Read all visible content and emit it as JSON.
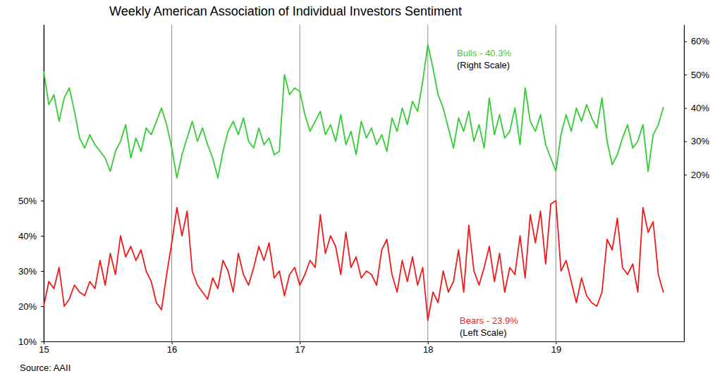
{
  "chart_data": {
    "type": "line",
    "title": "Weekly American Association of Individual Investors Sentiment",
    "source": "Source: AAII",
    "x": [
      15.0,
      15.04,
      15.08,
      15.12,
      15.16,
      15.2,
      15.24,
      15.28,
      15.32,
      15.36,
      15.4,
      15.44,
      15.48,
      15.52,
      15.56,
      15.6,
      15.64,
      15.68,
      15.72,
      15.76,
      15.8,
      15.84,
      15.88,
      15.92,
      15.96,
      16.0,
      16.04,
      16.08,
      16.12,
      16.16,
      16.2,
      16.24,
      16.28,
      16.32,
      16.36,
      16.4,
      16.44,
      16.48,
      16.52,
      16.56,
      16.6,
      16.64,
      16.68,
      16.72,
      16.76,
      16.8,
      16.84,
      16.88,
      16.92,
      16.96,
      17.0,
      17.04,
      17.08,
      17.12,
      17.16,
      17.2,
      17.24,
      17.28,
      17.32,
      17.36,
      17.4,
      17.44,
      17.48,
      17.52,
      17.56,
      17.6,
      17.64,
      17.68,
      17.72,
      17.76,
      17.8,
      17.84,
      17.88,
      17.92,
      17.96,
      18.0,
      18.04,
      18.08,
      18.12,
      18.16,
      18.2,
      18.24,
      18.28,
      18.32,
      18.36,
      18.4,
      18.44,
      18.48,
      18.52,
      18.56,
      18.6,
      18.64,
      18.68,
      18.72,
      18.76,
      18.8,
      18.84,
      18.88,
      18.92,
      18.96,
      19.0,
      19.04,
      19.08,
      19.12,
      19.16,
      19.2,
      19.24,
      19.28,
      19.32,
      19.36,
      19.4,
      19.44,
      19.48,
      19.52,
      19.56,
      19.6,
      19.64,
      19.68,
      19.72,
      19.76,
      19.8,
      19.84
    ],
    "xlim": [
      15,
      20
    ],
    "xticks": [
      15,
      16,
      17,
      18,
      19
    ],
    "ylim": [
      10,
      100
    ],
    "yticks": [
      {
        "value": 10,
        "label": "10%"
      },
      {
        "value": 20,
        "label": "20%"
      },
      {
        "value": 30,
        "label": "30%"
      },
      {
        "value": 40,
        "label": "40%"
      },
      {
        "value": 50,
        "label": "50%"
      }
    ],
    "y2lim": [
      -30,
      65
    ],
    "y2ticks": [
      {
        "value": 20,
        "label": "20%"
      },
      {
        "value": 30,
        "label": "30%"
      },
      {
        "value": 40,
        "label": "40%"
      },
      {
        "value": 50,
        "label": "50%"
      },
      {
        "value": 60,
        "label": "60%"
      }
    ],
    "grid": "x",
    "series": [
      {
        "name": "Bulls",
        "color": "#33cc33",
        "axis": "y2",
        "annotation": "- 40.3%",
        "scale_label": "(Right Scale)",
        "values": [
          51,
          41,
          44,
          36,
          43,
          46,
          39,
          31,
          28,
          32,
          29,
          27,
          25,
          21,
          27,
          30,
          35,
          25,
          31,
          27,
          34,
          32,
          36,
          40,
          35,
          28,
          19,
          26,
          31,
          36,
          30,
          34,
          29,
          25,
          19,
          27,
          33,
          36,
          32,
          37,
          30,
          28,
          34,
          29,
          31,
          26,
          27,
          50,
          44,
          46,
          45,
          38,
          33,
          36,
          39,
          32,
          35,
          30,
          38,
          29,
          33,
          26,
          36,
          31,
          34,
          29,
          32,
          27,
          37,
          33,
          40,
          35,
          42,
          39,
          48,
          59,
          52,
          44,
          40,
          34,
          28,
          37,
          33,
          39,
          30,
          35,
          28,
          43,
          32,
          38,
          31,
          33,
          40,
          29,
          46,
          36,
          33,
          38,
          29,
          25,
          21,
          32,
          38,
          33,
          40,
          36,
          41,
          37,
          34,
          43,
          30,
          23,
          26,
          31,
          35,
          28,
          30,
          35,
          21,
          32,
          35,
          40.3
        ]
      },
      {
        "name": "Bears",
        "color": "#ee1c1c",
        "axis": "y",
        "annotation": "- 23.9%",
        "scale_label": "(Left Scale)",
        "values": [
          20,
          27,
          25,
          31,
          20,
          22,
          26,
          24,
          23,
          27,
          25,
          33,
          26,
          35,
          29,
          40,
          34,
          37,
          33,
          36,
          30,
          27,
          21,
          19,
          29,
          38,
          48,
          40,
          47,
          30,
          26,
          24,
          22,
          28,
          25,
          33,
          30,
          24,
          35,
          29,
          26,
          31,
          37,
          33,
          38,
          28,
          30,
          23,
          29,
          31,
          26,
          29,
          33,
          31,
          46,
          35,
          40,
          37,
          29,
          41,
          31,
          34,
          28,
          30,
          29,
          26,
          36,
          39,
          29,
          24,
          33,
          27,
          34,
          26,
          31,
          16,
          24,
          21,
          30,
          24,
          27,
          36,
          24,
          43,
          30,
          26,
          31,
          37,
          27,
          35,
          24,
          31,
          29,
          40,
          28,
          46,
          38,
          47,
          32,
          49,
          50,
          30,
          33,
          27,
          21,
          28,
          23,
          21,
          20,
          24,
          39,
          36,
          45,
          31,
          29,
          32,
          24,
          48,
          41,
          44,
          29,
          23.9
        ]
      }
    ]
  }
}
